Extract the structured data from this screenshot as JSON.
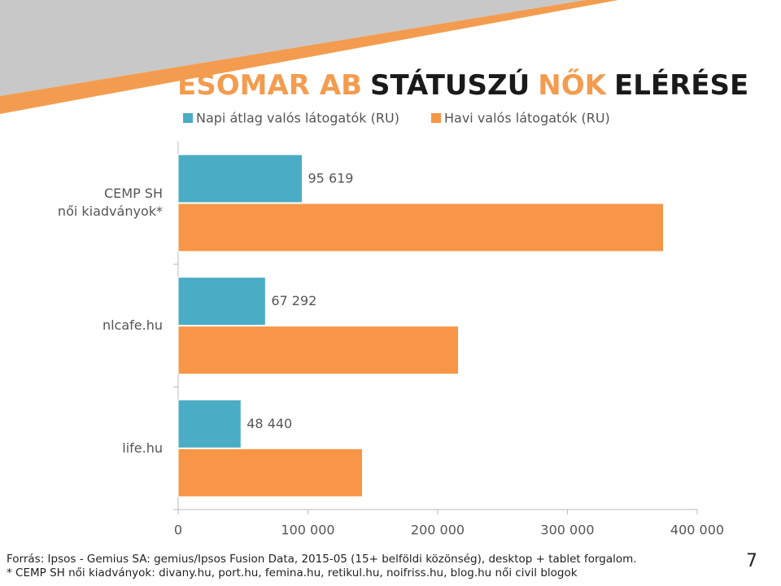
{
  "chart_data": {
    "type": "bar",
    "orientation": "horizontal",
    "title": [
      "ESOMAR AB",
      "STÁTUSZÚ",
      "NŐK",
      "ELÉRÉSE"
    ],
    "title_colors": [
      "#f39c4f",
      "#1a1a1a",
      "#f39c4f",
      "#1a1a1a"
    ],
    "categories": [
      "CEMP SH\nnői kiadványok*",
      "nlcafe.hu",
      "life.hu"
    ],
    "series": [
      {
        "name": "Napi átlag valós látogatók (RU)",
        "color": "#4aacc5",
        "values": [
          95619,
          67292,
          48440
        ],
        "value_labels": [
          "95 619",
          "67 292",
          "48 440"
        ]
      },
      {
        "name": "Havi valós látogatók (RU)",
        "color": "#f79646",
        "values": [
          374000,
          216000,
          142000
        ]
      }
    ],
    "xlim": [
      0,
      400000
    ],
    "xticks": [
      0,
      {
        "value": 100000,
        "label": "100 000"
      },
      {
        "value": 200000,
        "label": "200 000"
      },
      {
        "value": 300000,
        "label": "300 000"
      },
      {
        "value": 400000,
        "label": "400 000"
      }
    ],
    "legend": "top"
  },
  "footer": {
    "source": [
      "Forrás: Ipsos - Gemius SA: gemius/Ipsos Fusion Data, 2015-05 (15+ belföldi közönség), desktop + tablet forgalom.",
      "* CEMP SH női kiadványok: divany.hu, port.hu, femina.hu, retikul.hu, noifriss.hu, blog.hu női civil blogok"
    ],
    "page_number": "7"
  }
}
